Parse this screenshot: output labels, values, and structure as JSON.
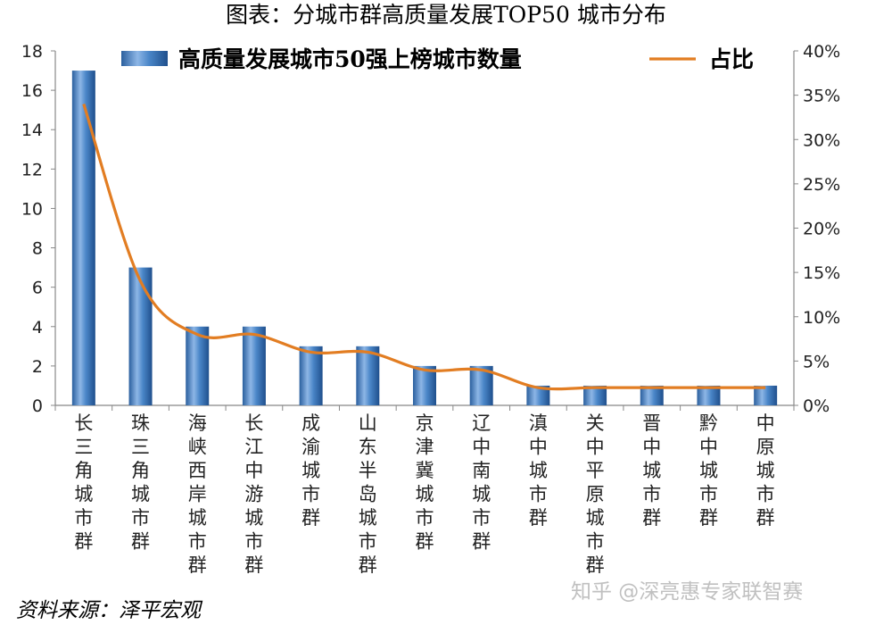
{
  "title": "图表：分城市群高质量发展TOP50 城市分布",
  "source": "资料来源：泽平宏观",
  "watermark": "知乎 @深亮惠专家联智赛",
  "colors": {
    "bar": "#3d79bd",
    "line": "#e27d22"
  },
  "chart_data": {
    "type": "bar",
    "categories": [
      "长三角城市群",
      "珠三角城市群",
      "海峡西岸城市群",
      "长江中游城市群",
      "成渝城市群",
      "山东半岛城市群",
      "京津冀城市群",
      "辽中南城市群",
      "滇中城市群",
      "关中平原城市群",
      "晋中城市群",
      "黔中城市群",
      "中原城市群"
    ],
    "series": [
      {
        "name": "高质量发展城市50强上榜城市数量",
        "type": "bar",
        "axis": "left",
        "values": [
          17,
          7,
          4,
          4,
          3,
          3,
          2,
          2,
          1,
          1,
          1,
          1,
          1
        ]
      },
      {
        "name": "占比",
        "type": "line",
        "axis": "right",
        "values": [
          34,
          14,
          8,
          8,
          6,
          6,
          4,
          4,
          2,
          2,
          2,
          2,
          2
        ]
      }
    ],
    "ylim": [
      0,
      18
    ],
    "yticks": [
      0,
      2,
      4,
      6,
      8,
      10,
      12,
      14,
      16,
      18
    ],
    "y2lim": [
      0,
      40
    ],
    "y2ticks": [
      "0%",
      "5%",
      "10%",
      "15%",
      "20%",
      "25%",
      "30%",
      "35%",
      "40%"
    ],
    "legend": "top"
  }
}
